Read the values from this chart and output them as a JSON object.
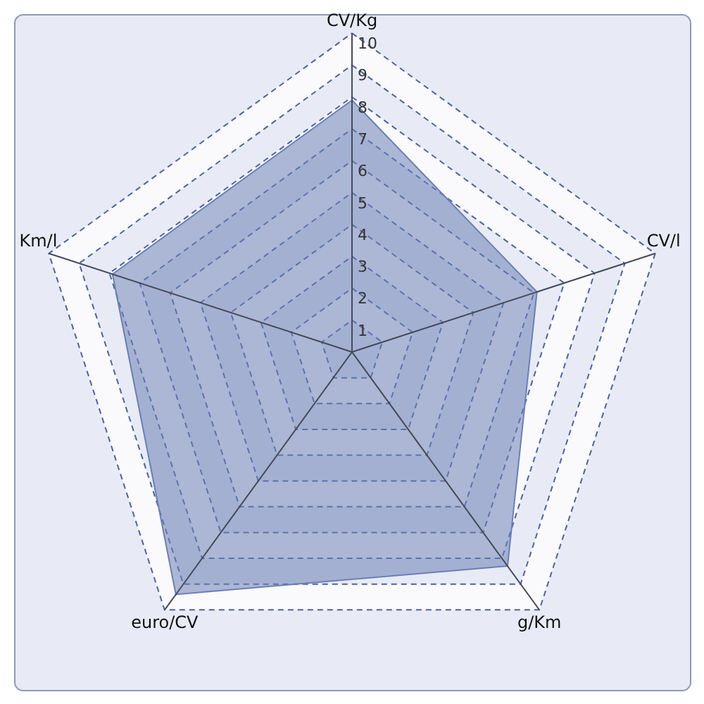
{
  "chart_data": {
    "type": "radar",
    "categories": [
      "CV/Kg",
      "CV/l",
      "g/Km",
      "euro/CV",
      "Km/l"
    ],
    "series": [
      {
        "color": "#6b7fb5",
        "values": [
          7.9,
          6.1,
          8.3,
          9.4,
          7.9
        ]
      }
    ],
    "ylim": [
      0,
      10
    ],
    "yticks": [
      1,
      2,
      3,
      4,
      5,
      6,
      7,
      8,
      9,
      10
    ],
    "grid": true
  }
}
